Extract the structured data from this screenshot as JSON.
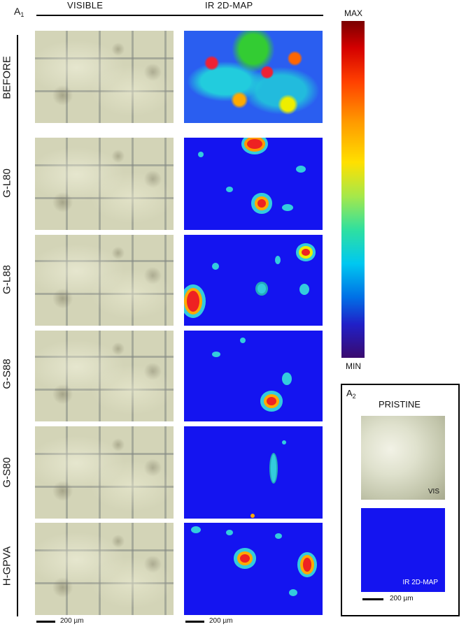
{
  "figure": {
    "panel_a1_label": "A",
    "panel_a1_sub": "1",
    "panel_a2_label": "A",
    "panel_a2_sub": "2",
    "columns": {
      "visible": "VISIBLE",
      "ir": "IR 2D-MAP"
    },
    "rows": [
      "BEFORE",
      "G-L80",
      "G-L88",
      "G-S88",
      "G-S80",
      "H-GPVA"
    ],
    "colorbar": {
      "max_label": "MAX",
      "min_label": "MIN"
    },
    "scale_label": "200 µm",
    "pristine": {
      "title": "PRISTINE",
      "vis_label": "VIS",
      "ir_label": "IR 2D-MAP"
    }
  }
}
